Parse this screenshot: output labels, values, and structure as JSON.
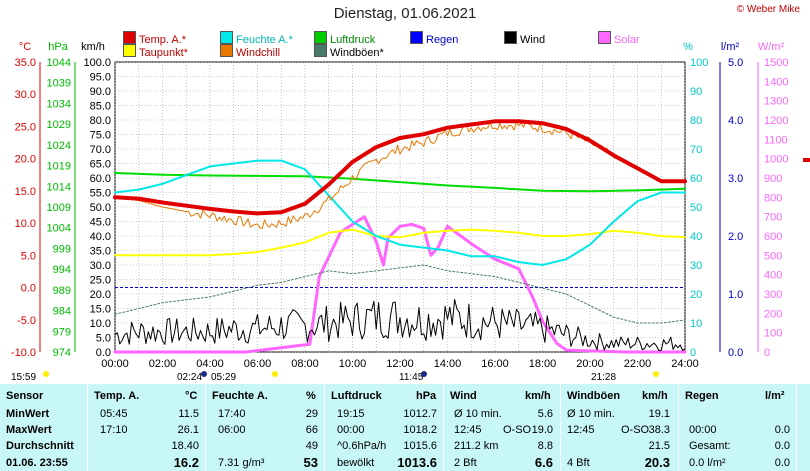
{
  "title": "Dienstag, 01.06.2021",
  "copyright": "© Weber Mike",
  "legend": [
    {
      "label": "Temp. A.*",
      "color": "#e00000",
      "col": 0,
      "row": 0
    },
    {
      "label": "Feuchte A.*",
      "color": "#00e8e8",
      "col": 1,
      "row": 0
    },
    {
      "label": "Luftdruck",
      "color": "#00cc00",
      "col": 2,
      "row": 0
    },
    {
      "label": "Regen",
      "color": "#0000ff",
      "col": 3,
      "row": 0
    },
    {
      "label": "Wind",
      "color": "#000000",
      "col": 4,
      "row": 0
    },
    {
      "label": "Solar",
      "color": "#ff66ff",
      "col": 5,
      "row": 0
    },
    {
      "label": "Taupunkt*",
      "color": "#ffff00",
      "col": 0,
      "row": 1
    },
    {
      "label": "Windchill",
      "color": "#e87800",
      "col": 1,
      "row": 1
    },
    {
      "label": "Windböen*",
      "color": "#4a7a6a",
      "col": 2,
      "row": 1
    }
  ],
  "axis_headers": {
    "temp": "°C",
    "press": "hPa",
    "wind": "km/h",
    "hum": "%",
    "rain": "l/m²",
    "solar": "W/m²"
  },
  "markers": {
    "sunrise": "05:29",
    "sunset": "21:28",
    "now": "15:59",
    "min_time": "02:24",
    "max_time": "11:45"
  },
  "chart_data": {
    "type": "line",
    "title": "Dienstag, 01.06.2021",
    "x_ticks": [
      "00:00",
      "02:00",
      "04:00",
      "06:00",
      "08:00",
      "10:00",
      "12:00",
      "14:00",
      "16:00",
      "18:00",
      "20:00",
      "22:00",
      "24:00"
    ],
    "axes": {
      "temp_c": {
        "ticks": [
          "35.0",
          "30.0",
          "25.0",
          "20.0",
          "15.0",
          "10.0",
          "5.0",
          "0.0",
          "-5.0",
          "-10.0"
        ],
        "range": [
          -10,
          35
        ],
        "color": "#e00000"
      },
      "pressure_hpa": {
        "ticks": [
          "1044",
          "1039",
          "1034",
          "1029",
          "1024",
          "1019",
          "1014",
          "1009",
          "1004",
          "999",
          "994",
          "989",
          "984",
          "979",
          "974"
        ],
        "range": [
          974,
          1044
        ],
        "color": "#00bb00"
      },
      "wind_kmh": {
        "ticks": [
          "100.0",
          "95.0",
          "90.0",
          "85.0",
          "80.0",
          "75.0",
          "70.0",
          "65.0",
          "60.0",
          "55.0",
          "50.0",
          "45.0",
          "40.0",
          "35.0",
          "30.0",
          "25.0",
          "20.0",
          "15.0",
          "10.0",
          "5.0",
          "0.0"
        ],
        "range": [
          0,
          100
        ],
        "color": "#000000"
      },
      "humidity_pct": {
        "ticks": [
          "100",
          "90",
          "80",
          "70",
          "60",
          "50",
          "40",
          "30",
          "20",
          "10",
          "0"
        ],
        "range": [
          0,
          100
        ],
        "color": "#00c8c8"
      },
      "rain_lm2": {
        "ticks": [
          "5.0",
          "4.0",
          "3.0",
          "2.0",
          "1.0",
          "0.0"
        ],
        "range": [
          0,
          5
        ],
        "color": "#0000ff"
      },
      "solar_wm2": {
        "ticks": [
          "1500",
          "1400",
          "1300",
          "1200",
          "1100",
          "1000",
          "900",
          "800",
          "700",
          "600",
          "500",
          "400",
          "300",
          "200",
          "100",
          "0"
        ],
        "range": [
          0,
          1500
        ],
        "color": "#ff66ff"
      }
    },
    "series": [
      {
        "name": "Temp. A.*",
        "color": "#e00000",
        "width": 4,
        "axis": "temp_c",
        "x": [
          0,
          1,
          2,
          3,
          4,
          5,
          6,
          7,
          8,
          9,
          10,
          11,
          12,
          13,
          14,
          15,
          16,
          17,
          18,
          19,
          20,
          21,
          22,
          23,
          24
        ],
        "y": [
          14.0,
          13.8,
          13.2,
          12.7,
          12.2,
          11.8,
          11.5,
          11.7,
          13.0,
          16.0,
          19.5,
          21.8,
          23.2,
          23.8,
          24.8,
          25.3,
          25.8,
          25.8,
          25.5,
          24.6,
          22.8,
          20.5,
          18.5,
          16.5,
          16.5
        ]
      },
      {
        "name": "Windchill",
        "color": "#e87800",
        "width": 1,
        "axis": "temp_c",
        "x": [
          0,
          1,
          2,
          3,
          4,
          5,
          6,
          7,
          8,
          9,
          10,
          11,
          12,
          13,
          14,
          15,
          16,
          17,
          18,
          19,
          20,
          21,
          22,
          23,
          24
        ],
        "y": [
          14.0,
          13.5,
          12.5,
          11.8,
          11.2,
          10.5,
          9.6,
          10.0,
          11.0,
          13.5,
          17.0,
          19.8,
          21.5,
          22.5,
          24.0,
          24.8,
          25.3,
          25.2,
          24.8,
          24.0,
          22.5,
          20.2,
          18.3,
          16.5,
          16.5
        ]
      },
      {
        "name": "Taupunkt*",
        "color": "#ffff00",
        "width": 2,
        "axis": "temp_c",
        "x": [
          0,
          1,
          2,
          3,
          4,
          5,
          6,
          7,
          8,
          9,
          10,
          11,
          12,
          13,
          14,
          15,
          16,
          17,
          18,
          19,
          20,
          21,
          22,
          23,
          24
        ],
        "y": [
          5.0,
          5.0,
          5.0,
          5.0,
          5.0,
          5.2,
          5.5,
          6.2,
          7.0,
          8.5,
          9.0,
          8.0,
          7.8,
          8.5,
          8.8,
          9.0,
          8.8,
          8.5,
          8.0,
          8.0,
          8.3,
          8.8,
          8.5,
          8.0,
          7.8
        ]
      },
      {
        "name": "Feuchte A.*",
        "color": "#00e8e8",
        "width": 2,
        "axis": "humidity_pct",
        "x": [
          0,
          1,
          2,
          3,
          4,
          5,
          6,
          7,
          8,
          9,
          10,
          11,
          12,
          13,
          14,
          15,
          16,
          17,
          18,
          19,
          20,
          21,
          22,
          23,
          24
        ],
        "y": [
          55,
          56,
          58,
          61,
          64,
          65,
          66,
          66,
          63,
          54,
          45,
          40,
          37,
          36,
          35,
          33,
          33,
          31,
          30,
          32,
          37,
          45,
          52,
          55,
          55
        ]
      },
      {
        "name": "Luftdruck",
        "color": "#00dd00",
        "width": 2,
        "axis": "pressure_hpa",
        "x": [
          0,
          2,
          4,
          6,
          8,
          10,
          12,
          14,
          16,
          18,
          20,
          22,
          24
        ],
        "y": [
          1017.2,
          1016.8,
          1016.6,
          1016.5,
          1016.4,
          1015.8,
          1015.0,
          1014.2,
          1013.6,
          1012.9,
          1012.8,
          1013.0,
          1013.4
        ]
      },
      {
        "name": "Solar",
        "color": "#ff66ff",
        "width": 3,
        "axis": "solar_wm2",
        "x": [
          0,
          5.5,
          8.2,
          8.6,
          9.5,
          10.5,
          11.0,
          11.3,
          11.5,
          12.0,
          12.5,
          13.0,
          13.3,
          13.6,
          14.0,
          15.0,
          16.0,
          17.0,
          17.6,
          18.0,
          18.6,
          19.0,
          21.5,
          24
        ],
        "y": [
          0,
          0,
          40,
          390,
          620,
          700,
          570,
          450,
          590,
          650,
          660,
          640,
          500,
          540,
          650,
          560,
          480,
          430,
          280,
          160,
          45,
          10,
          0,
          0
        ]
      },
      {
        "name": "Windböen*",
        "color": "#4a7a6a",
        "width": 1,
        "dash": "2,2",
        "axis": "wind_kmh",
        "x": [
          0,
          1,
          2,
          3,
          4,
          5,
          6,
          7,
          8,
          9,
          10,
          11,
          12,
          13,
          14,
          15,
          16,
          17,
          18,
          19,
          20,
          21,
          22,
          23,
          24
        ],
        "y": [
          13,
          15,
          17,
          18,
          19,
          21,
          23,
          24,
          26,
          28,
          27,
          28,
          29,
          30,
          28,
          27,
          26,
          24,
          22,
          20,
          16,
          12,
          10,
          10,
          11
        ]
      },
      {
        "name": "Wind",
        "color": "#000000",
        "width": 1,
        "axis": "wind_kmh",
        "style": "noisy",
        "x": [
          0,
          1,
          2,
          3,
          4,
          5,
          6,
          7,
          8,
          9,
          10,
          11,
          12,
          13,
          14,
          15,
          16,
          17,
          18,
          19,
          20,
          21,
          22,
          23,
          24
        ],
        "y": [
          6,
          7,
          7,
          7,
          7,
          8,
          8,
          9,
          9,
          10,
          11,
          12,
          12,
          11,
          12,
          11,
          10,
          9,
          8,
          6,
          4,
          3,
          3,
          3,
          3
        ]
      }
    ],
    "dotted_lines": [
      {
        "axis": "temp_c",
        "value": 0,
        "color": "#0000cc"
      }
    ]
  },
  "stats": {
    "headers": {
      "sensor": "Sensor",
      "temp": "Temp. A.",
      "temp_unit": "°C",
      "hum": "Feuchte A.",
      "hum_unit": "%",
      "press": "Luftdruck",
      "press_unit": "hPa",
      "wind": "Wind",
      "wind_unit": "km/h",
      "gust": "Windböen",
      "gust_unit": "km/h",
      "rain": "Regen",
      "rain_unit": "l/m²"
    },
    "rows": [
      {
        "label": "MinWert",
        "temp_time": "05:45",
        "temp_val": "11.5",
        "hum_time": "17:40",
        "hum_val": "29",
        "press_time": "19:15",
        "press_val": "1012.7",
        "wind_a": "Ø 10 min.",
        "wind_val": "5.6",
        "gust_a": "Ø 10 min.",
        "gust_val": "19.1",
        "rain_a": "",
        "rain_val": ""
      },
      {
        "label": "MaxWert",
        "temp_time": "17:10",
        "temp_val": "26.1",
        "hum_time": "06:00",
        "hum_val": "66",
        "press_time": "00:00",
        "press_val": "1018.2",
        "wind_a": "12:45",
        "wind_dir": "O-SO",
        "wind_val": "19.0",
        "gust_a": "12:45",
        "gust_dir": "O-SO",
        "gust_val": "38.3",
        "rain_a": "00:00",
        "rain_val": "0.0"
      },
      {
        "label": "Durchschnitt",
        "temp_time": "",
        "temp_val": "18.40",
        "hum_time": "",
        "hum_val": "49",
        "press_time": "^0.6hPa/h",
        "press_val": "1015.6",
        "wind_a": "211.2 km",
        "wind_val": "8.8",
        "gust_a": "",
        "gust_val": "21.5",
        "rain_a": "Gesamt:",
        "rain_val": "0.0"
      },
      {
        "label": "01.06. 23:55",
        "temp_time": "",
        "temp_val": "16.2",
        "hum_time": "7.31 g/m³",
        "hum_val": "53",
        "press_time": "bewölkt",
        "press_val": "1013.6",
        "wind_a": "2 Bft",
        "wind_val": "6.6",
        "gust_a": "4 Bft",
        "gust_val": "20.3",
        "rain_a": "0.0 l/m²",
        "rain_val": "0.0"
      }
    ]
  }
}
